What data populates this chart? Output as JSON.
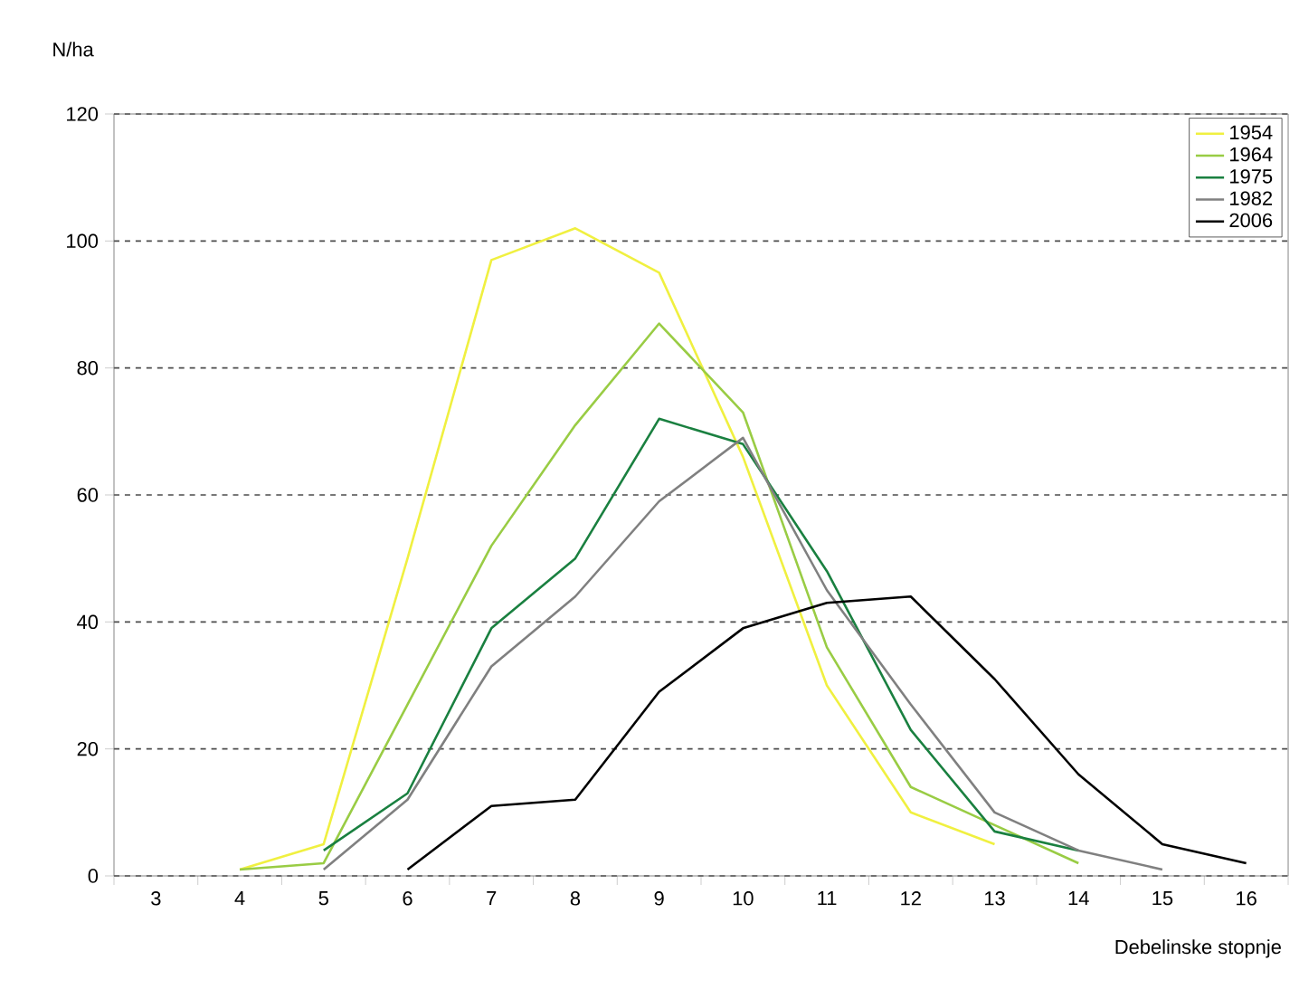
{
  "chart_data": {
    "type": "line",
    "xlabel": "Debelinske stopnje",
    "ylabel": "N/ha",
    "categories": [
      "3",
      "4",
      "5",
      "6",
      "7",
      "8",
      "9",
      "10",
      "11",
      "12",
      "13",
      "14",
      "15",
      "16"
    ],
    "series": [
      {
        "name": "1954",
        "color": "#f0f040",
        "values": [
          null,
          1,
          5,
          50,
          97,
          102,
          95,
          66,
          30,
          10,
          5,
          null,
          null,
          null
        ]
      },
      {
        "name": "1964",
        "color": "#99cc44",
        "values": [
          null,
          1,
          2,
          27,
          52,
          71,
          87,
          73,
          36,
          14,
          8,
          2,
          null,
          null
        ]
      },
      {
        "name": "1975",
        "color": "#1a8040",
        "values": [
          null,
          null,
          4,
          13,
          39,
          50,
          72,
          68,
          48,
          23,
          7,
          4,
          null,
          null
        ]
      },
      {
        "name": "1982",
        "color": "#808080",
        "values": [
          null,
          null,
          1,
          12,
          33,
          44,
          59,
          69,
          45,
          27,
          10,
          4,
          1,
          null
        ]
      },
      {
        "name": "2006",
        "color": "#000000",
        "values": [
          null,
          null,
          null,
          1,
          11,
          12,
          29,
          39,
          43,
          44,
          31,
          16,
          5,
          2
        ]
      }
    ],
    "ylim": [
      0,
      120
    ],
    "yticks": [
      0,
      20,
      40,
      60,
      80,
      100,
      120
    ],
    "grid": "y",
    "legend": "top right",
    "marker": "none",
    "line_style": "solid"
  }
}
